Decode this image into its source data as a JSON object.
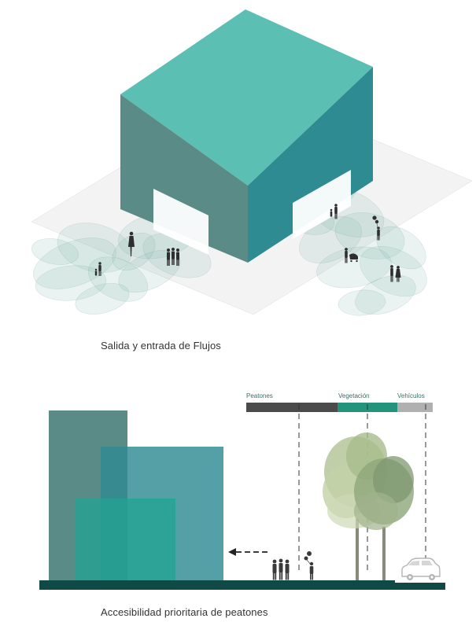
{
  "captions": {
    "top": "Salida y entrada de Flujos",
    "bottom": "Accesibilidad prioritaria de peatones"
  },
  "legend": {
    "peatones": "Peatones",
    "vegetacion": "Vegetación",
    "vehiculos": "Vehículos"
  },
  "colors": {
    "roof": "#5cbfb4",
    "left_wall": "#5b8b86",
    "right_wall": "#2f8b92",
    "ground_dark": "#0f4a46",
    "peatones_bar": "#4b4b4b",
    "vegetacion_bar": "#23937b",
    "vehiculos_bar": "#b0b0b0"
  }
}
